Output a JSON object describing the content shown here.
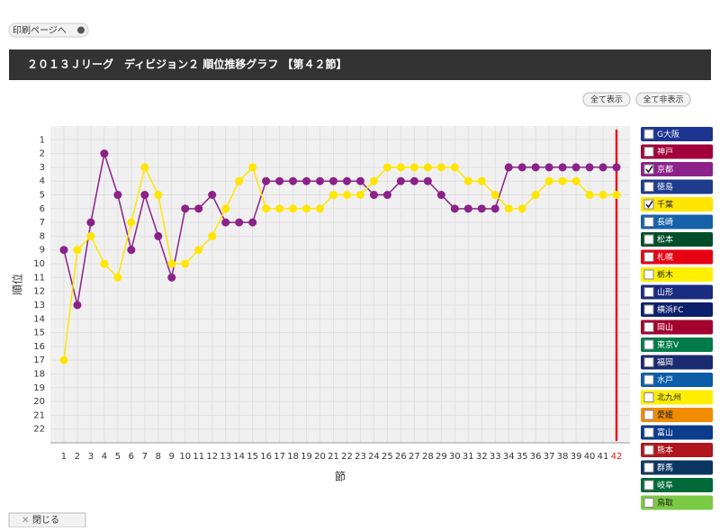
{
  "ui": {
    "print_button": "印刷ページへ",
    "show_all": "全て表示",
    "hide_all": "全て非表示",
    "close": "閉じる"
  },
  "chart_data": {
    "type": "line",
    "title": "２０１３Ｊリーグ　ディビジョン２ 順位推移グラフ 【第４２節】",
    "x_label": "節",
    "y_label": "順位",
    "x": [
      1,
      2,
      3,
      4,
      5,
      6,
      7,
      8,
      9,
      10,
      11,
      12,
      13,
      14,
      15,
      16,
      17,
      18,
      19,
      20,
      21,
      22,
      23,
      24,
      25,
      26,
      27,
      28,
      29,
      30,
      31,
      32,
      33,
      34,
      35,
      36,
      37,
      38,
      39,
      40,
      41,
      42
    ],
    "xlim": [
      0,
      43
    ],
    "xticks": [
      1,
      2,
      3,
      4,
      5,
      6,
      7,
      8,
      9,
      10,
      11,
      12,
      13,
      14,
      15,
      16,
      17,
      18,
      19,
      20,
      21,
      22,
      23,
      24,
      25,
      26,
      27,
      28,
      29,
      30,
      31,
      32,
      33,
      34,
      35,
      36,
      37,
      38,
      39,
      40,
      41,
      42
    ],
    "ylim": [
      23,
      0
    ],
    "yticks": [
      1,
      2,
      3,
      4,
      5,
      6,
      7,
      8,
      9,
      10,
      11,
      12,
      13,
      14,
      15,
      16,
      17,
      18,
      19,
      20,
      21,
      22
    ],
    "grid": true,
    "marker_x": 42,
    "marker_color": "#e8151b",
    "series": [
      {
        "name": "G大阪",
        "color": "#1b3591",
        "visible": false
      },
      {
        "name": "神戸",
        "color": "#a1003b",
        "visible": false
      },
      {
        "name": "京都",
        "color": "#8b2189",
        "visible": true,
        "values": [
          9,
          13,
          7,
          2,
          5,
          9,
          5,
          8,
          11,
          6,
          6,
          5,
          7,
          7,
          7,
          4,
          4,
          4,
          4,
          4,
          4,
          4,
          4,
          5,
          5,
          4,
          4,
          4,
          5,
          6,
          6,
          6,
          6,
          3,
          3,
          3,
          3,
          3,
          3,
          3,
          3,
          3
        ]
      },
      {
        "name": "徳島",
        "color": "#1d3c8d",
        "visible": false
      },
      {
        "name": "千葉",
        "color": "#ffe600",
        "visible": true,
        "values": [
          17,
          9,
          8,
          10,
          11,
          7,
          3,
          5,
          10,
          10,
          9,
          8,
          6,
          4,
          3,
          6,
          6,
          6,
          6,
          6,
          5,
          5,
          5,
          4,
          3,
          3,
          3,
          3,
          3,
          3,
          4,
          4,
          5,
          6,
          6,
          5,
          4,
          4,
          4,
          5,
          5,
          5
        ]
      },
      {
        "name": "長崎",
        "color": "#1561a9",
        "visible": false
      },
      {
        "name": "松本",
        "color": "#004e29",
        "visible": false
      },
      {
        "name": "札幌",
        "color": "#e60012",
        "visible": false
      },
      {
        "name": "栃木",
        "color": "#fff000",
        "visible": false
      },
      {
        "name": "山形",
        "color": "#1a2b82",
        "visible": false
      },
      {
        "name": "横浜FC",
        "color": "#0b1f6b",
        "visible": false
      },
      {
        "name": "岡山",
        "color": "#a30030",
        "visible": false
      },
      {
        "name": "東京V",
        "color": "#007a4b",
        "visible": false
      },
      {
        "name": "福岡",
        "color": "#1a2b71",
        "visible": false
      },
      {
        "name": "水戸",
        "color": "#0b5da9",
        "visible": false
      },
      {
        "name": "北九州",
        "color": "#ffee00",
        "visible": false
      },
      {
        "name": "愛媛",
        "color": "#f18b00",
        "visible": false
      },
      {
        "name": "富山",
        "color": "#0b3b8b",
        "visible": false
      },
      {
        "name": "熊本",
        "color": "#b1151d",
        "visible": false
      },
      {
        "name": "群馬",
        "color": "#0b3661",
        "visible": false
      },
      {
        "name": "岐阜",
        "color": "#006939",
        "visible": false
      },
      {
        "name": "鳥取",
        "color": "#7bca44",
        "visible": false
      }
    ]
  }
}
